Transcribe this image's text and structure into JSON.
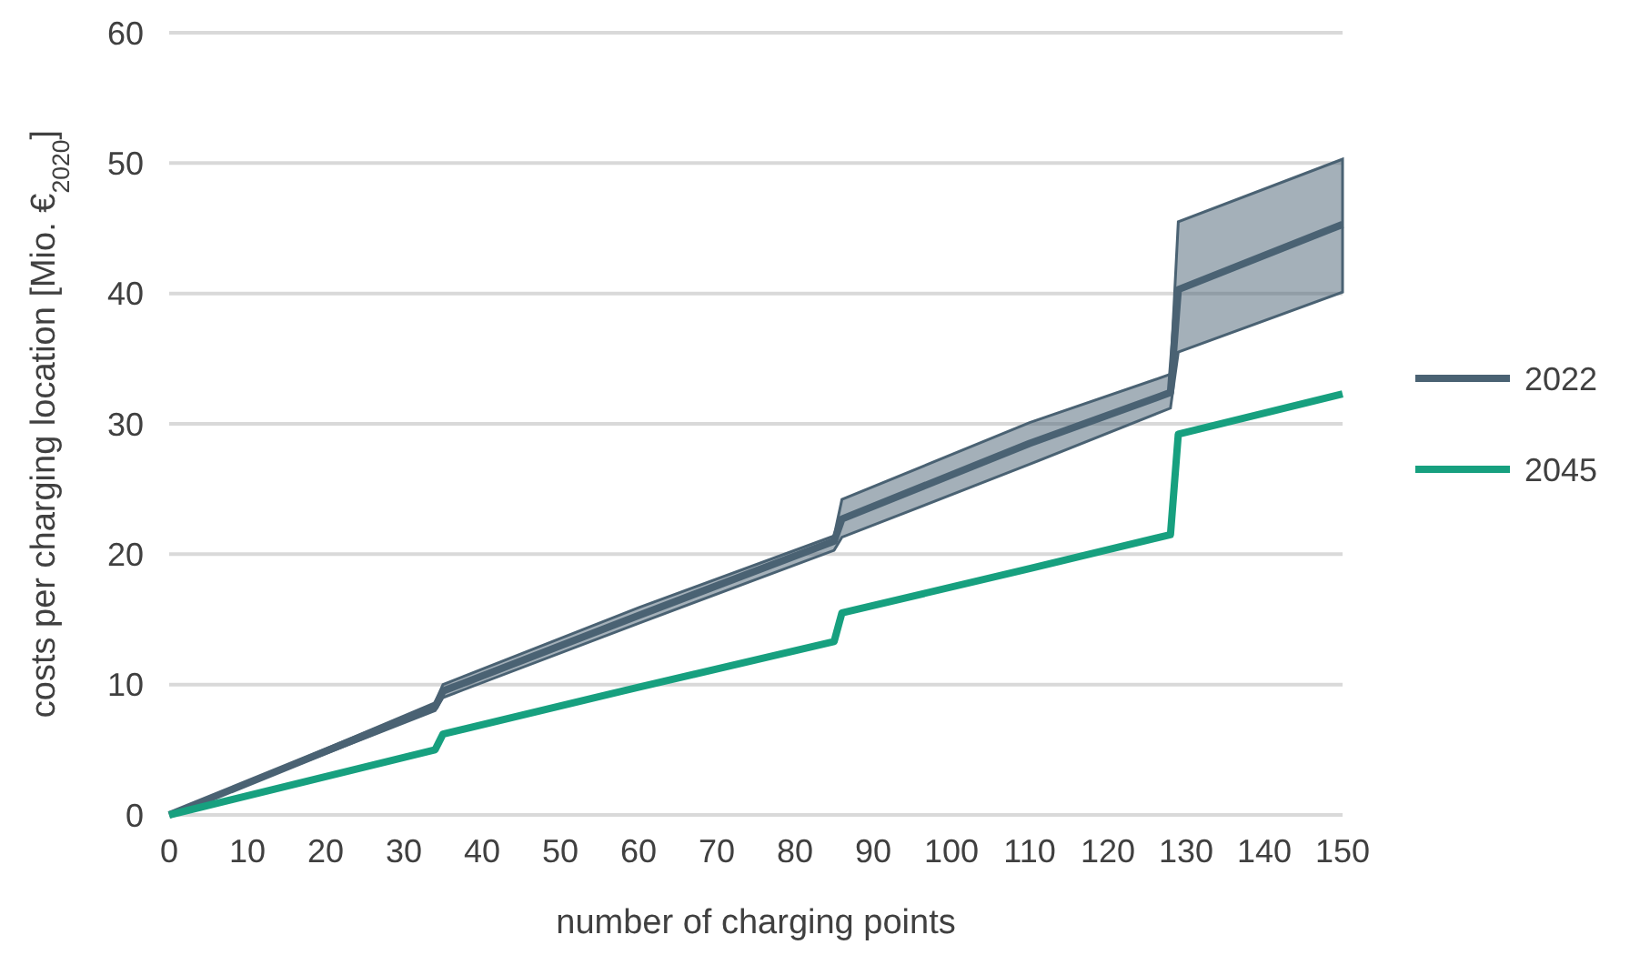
{
  "chart_data": {
    "type": "line",
    "xlabel": "number of charging points",
    "ylabel": "costs per charging location [Mio. €$_{2020}$]",
    "xlim": [
      0,
      150
    ],
    "xticks": [
      0,
      10,
      20,
      30,
      40,
      50,
      60,
      70,
      80,
      90,
      100,
      110,
      120,
      130,
      140,
      150
    ],
    "ylim": [
      0,
      60
    ],
    "yticks": [
      0,
      10,
      20,
      30,
      40,
      50,
      60
    ],
    "grid": "y",
    "legend": "right",
    "series": [
      {
        "name": "2022",
        "color": "#4a6273",
        "x": [
          0,
          34,
          35,
          60,
          85,
          86,
          110,
          128,
          129,
          150
        ],
        "values": [
          0,
          8.3,
          9.5,
          15.3,
          21.0,
          22.7,
          28.5,
          32.4,
          40.3,
          45.3
        ],
        "lower": [
          0,
          8.0,
          9.0,
          14.7,
          20.3,
          21.3,
          26.9,
          31.2,
          35.5,
          40.1
        ],
        "upper": [
          0,
          8.6,
          10.0,
          15.9,
          21.4,
          24.2,
          30.1,
          33.8,
          45.5,
          50.3
        ]
      },
      {
        "name": "2045",
        "color": "#17a07f",
        "x": [
          0,
          34,
          35,
          60,
          85,
          86,
          110,
          128,
          129,
          150
        ],
        "values": [
          0,
          5.0,
          6.2,
          9.8,
          13.3,
          15.5,
          18.9,
          21.5,
          29.2,
          32.3
        ]
      }
    ]
  }
}
